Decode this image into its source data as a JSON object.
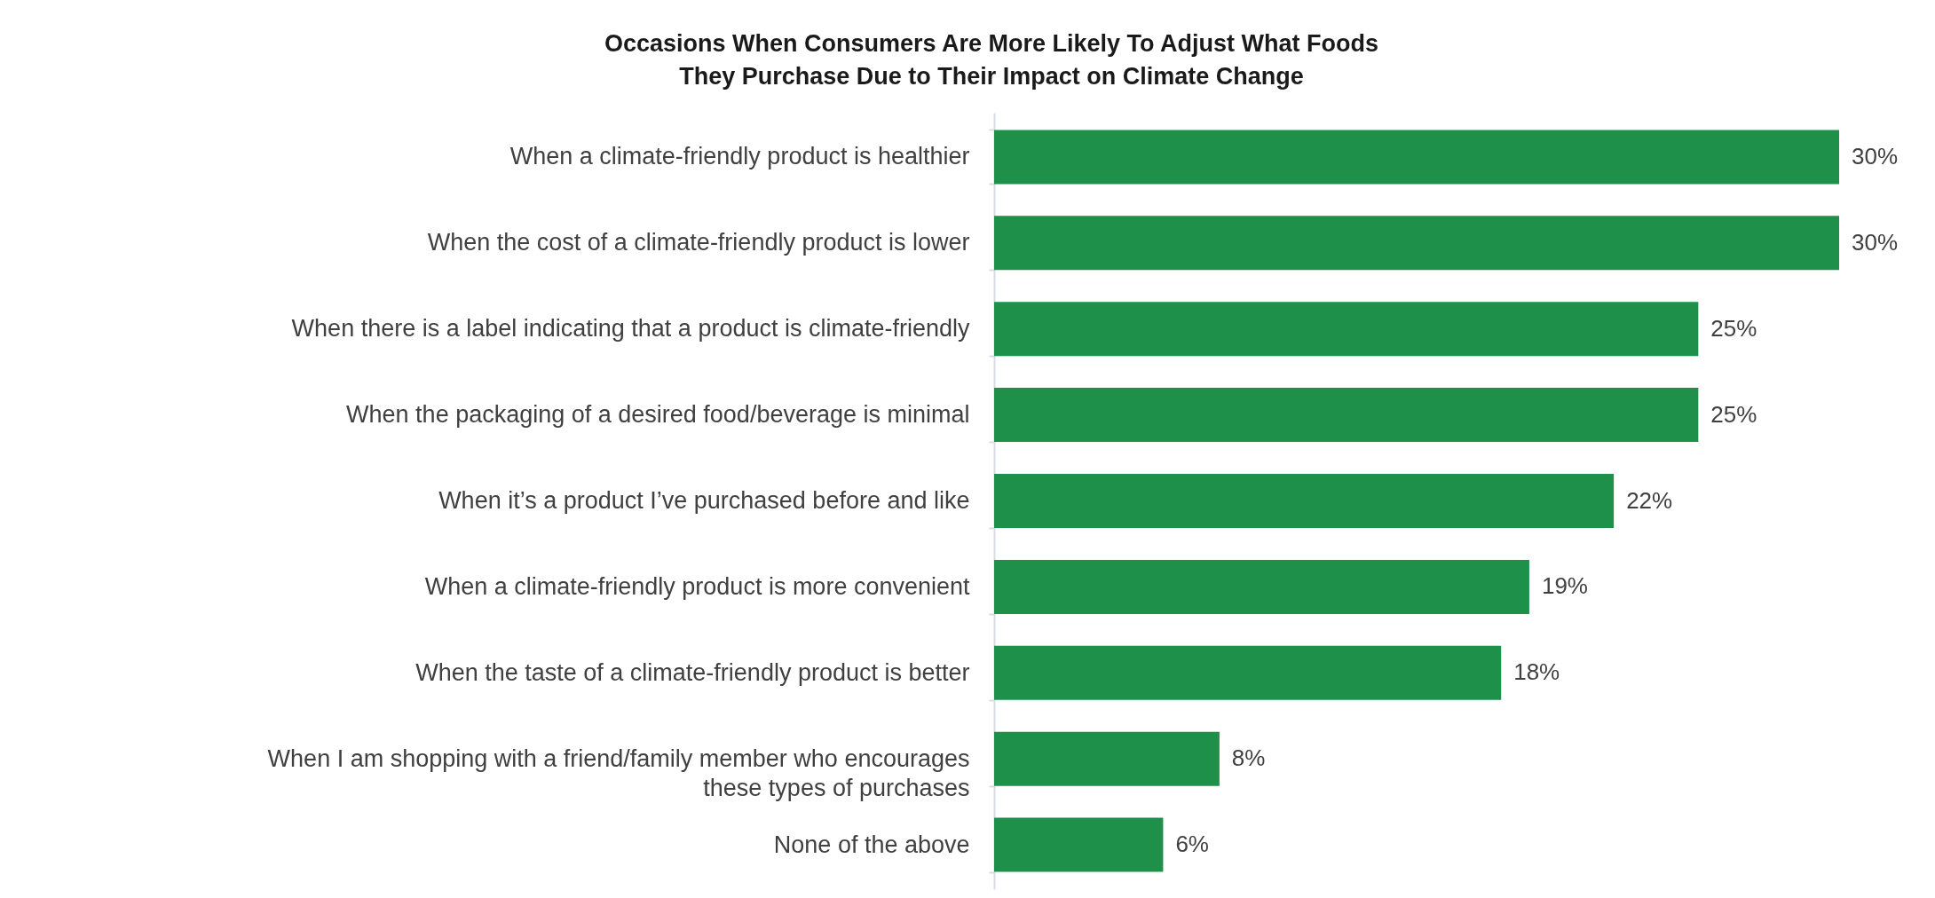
{
  "chart_data": {
    "type": "bar",
    "orientation": "horizontal",
    "title": "Occasions When Consumers Are More Likely To Adjust What Foods\nThey Purchase Due to Their Impact on Climate Change",
    "categories": [
      "When a climate-friendly product is healthier",
      "When the cost of a climate-friendly product is lower",
      "When there is a label indicating that a product is climate-friendly",
      "When the packaging of a desired food/beverage is minimal",
      "When it’s a product I’ve purchased before and like",
      "When a climate-friendly product is more convenient",
      "When the taste of a climate-friendly product is better",
      "When I am shopping with a friend/family member who encourages\nthese types of purchases",
      "None of the above"
    ],
    "values": [
      30,
      30,
      25,
      25,
      22,
      19,
      18,
      8,
      6
    ],
    "value_labels": [
      "30%",
      "30%",
      "25%",
      "25%",
      "22%",
      "19%",
      "18%",
      "8%",
      "6%"
    ],
    "color": "#1e9049",
    "xlim": [
      0,
      30
    ],
    "tick_labels": "y"
  }
}
